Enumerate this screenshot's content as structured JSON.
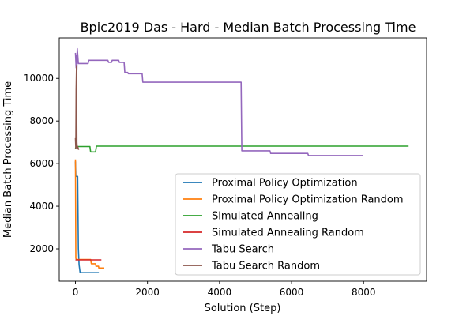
{
  "chart_data": {
    "type": "line",
    "title": "Bpic2019 Das - Hard - Median Batch Processing Time",
    "xlabel": "Solution (Step)",
    "ylabel": "Median Batch Processing Time",
    "xlim": [
      -450,
      9750
    ],
    "ylim": [
      480,
      11900
    ],
    "xticks": [
      0,
      2000,
      4000,
      6000,
      8000
    ],
    "yticks": [
      2000,
      4000,
      6000,
      8000,
      10000
    ],
    "grid": false,
    "legend_position": "lower-right",
    "series": [
      {
        "name": "Proximal Policy Optimization",
        "color": "#1f77b4",
        "points": [
          [
            0,
            6100
          ],
          [
            10,
            5400
          ],
          [
            60,
            5400
          ],
          [
            80,
            2000
          ],
          [
            100,
            1250
          ],
          [
            130,
            880
          ],
          [
            300,
            880
          ],
          [
            650,
            880
          ]
        ]
      },
      {
        "name": "Proximal Policy Optimization Random",
        "color": "#ff7f0e",
        "points": [
          [
            0,
            6200
          ],
          [
            10,
            1550
          ],
          [
            30,
            1500
          ],
          [
            420,
            1500
          ],
          [
            440,
            1300
          ],
          [
            560,
            1300
          ],
          [
            570,
            1180
          ],
          [
            640,
            1180
          ],
          [
            650,
            1100
          ],
          [
            800,
            1100
          ]
        ]
      },
      {
        "name": "Simulated Annealing",
        "color": "#2ca02c",
        "points": [
          [
            0,
            6700
          ],
          [
            20,
            6800
          ],
          [
            400,
            6800
          ],
          [
            420,
            6550
          ],
          [
            560,
            6550
          ],
          [
            580,
            6820
          ],
          [
            9250,
            6820
          ]
        ]
      },
      {
        "name": "Simulated Annealing Random",
        "color": "#d62728",
        "points": [
          [
            0,
            1480
          ],
          [
            20,
            1480
          ],
          [
            720,
            1480
          ]
        ]
      },
      {
        "name": "Tabu Search",
        "color": "#9467bd",
        "points": [
          [
            0,
            11200
          ],
          [
            20,
            10500
          ],
          [
            30,
            11100
          ],
          [
            40,
            10400
          ],
          [
            50,
            11400
          ],
          [
            80,
            10700
          ],
          [
            350,
            10700
          ],
          [
            370,
            10850
          ],
          [
            900,
            10850
          ],
          [
            920,
            10750
          ],
          [
            1000,
            10750
          ],
          [
            1020,
            10850
          ],
          [
            1200,
            10850
          ],
          [
            1220,
            10750
          ],
          [
            1350,
            10750
          ],
          [
            1370,
            10280
          ],
          [
            1450,
            10280
          ],
          [
            1470,
            10220
          ],
          [
            1850,
            10220
          ],
          [
            1870,
            9820
          ],
          [
            4600,
            9820
          ],
          [
            4620,
            6600
          ],
          [
            5400,
            6600
          ],
          [
            5420,
            6480
          ],
          [
            6450,
            6480
          ],
          [
            6470,
            6380
          ],
          [
            7980,
            6380
          ]
        ]
      },
      {
        "name": "Tabu Search Random",
        "color": "#8c564b",
        "points": [
          [
            0,
            7200
          ],
          [
            10,
            6700
          ],
          [
            20,
            9500
          ],
          [
            30,
            10600
          ],
          [
            40,
            7000
          ],
          [
            50,
            6700
          ],
          [
            60,
            6800
          ],
          [
            90,
            6650
          ]
        ]
      }
    ]
  }
}
